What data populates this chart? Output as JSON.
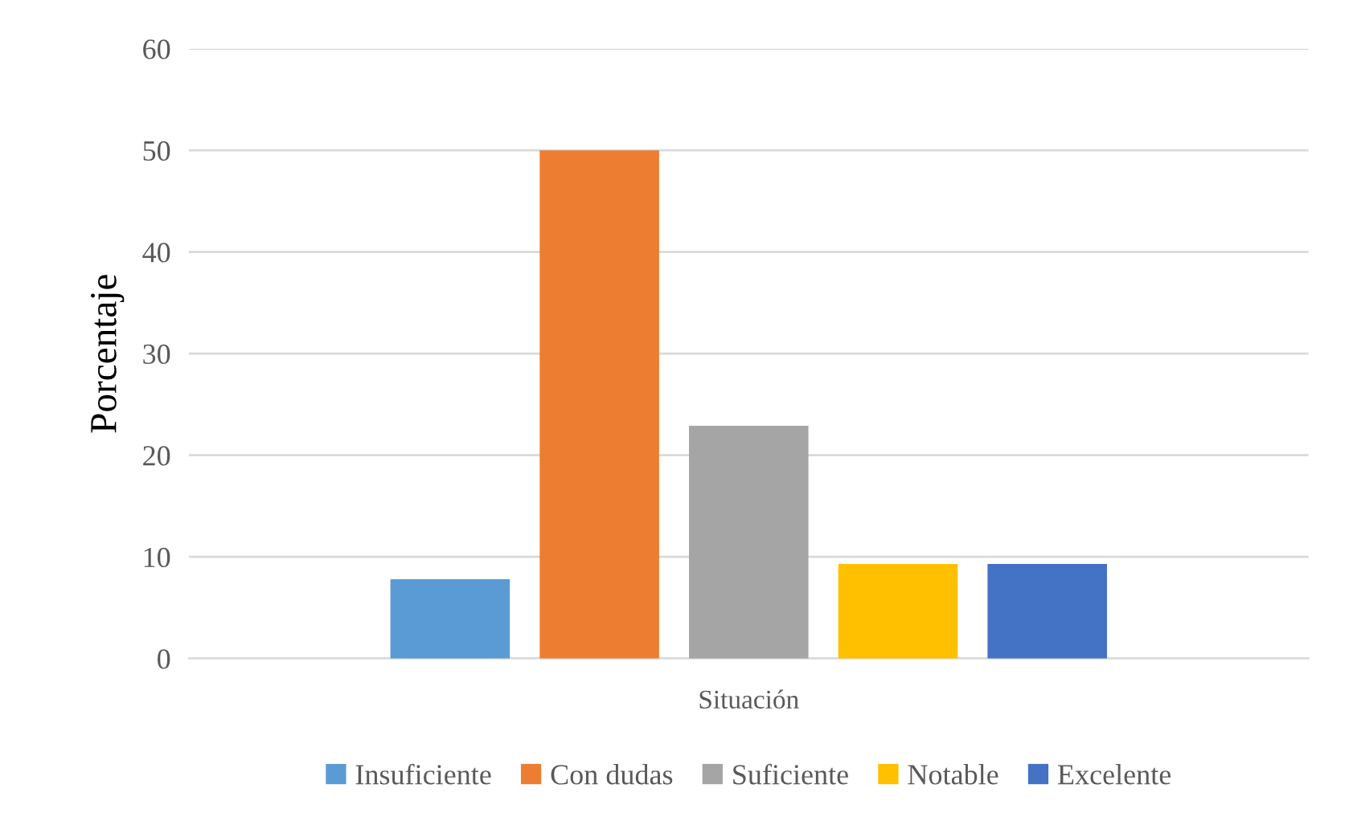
{
  "chart_data": {
    "type": "bar",
    "ylabel": "Porcentaje",
    "categories": [
      "Situación"
    ],
    "series": [
      {
        "name": "Insuficiente",
        "color": "#5b9bd5",
        "values": [
          7.8
        ]
      },
      {
        "name": "Con dudas",
        "color": "#ed7d31",
        "values": [
          50
        ]
      },
      {
        "name": "Suficiente",
        "color": "#a5a5a5",
        "values": [
          22.9
        ]
      },
      {
        "name": "Notable",
        "color": "#ffc000",
        "values": [
          9.3
        ]
      },
      {
        "name": "Excelente",
        "color": "#4472c4",
        "values": [
          9.3
        ]
      }
    ],
    "ylim": [
      0,
      60
    ],
    "yticks": [
      0,
      10,
      20,
      30,
      40,
      50,
      60
    ],
    "grid": "y",
    "legend": "bottom"
  }
}
